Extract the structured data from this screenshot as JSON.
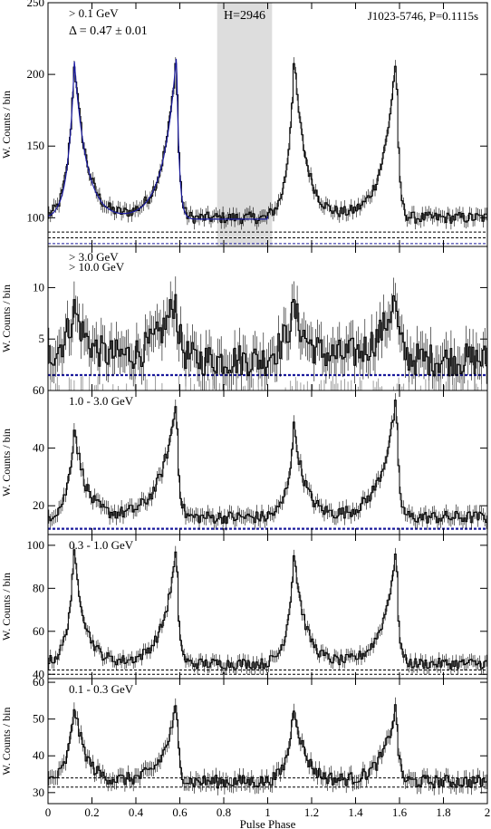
{
  "chart_data": [
    {
      "type": "line",
      "energy_label": "> 0.1 GeV",
      "delta_label": "Δ = 0.47 ± 0.01",
      "htest_label": "H=2946",
      "pulsar_label": "J1023-5746, P=0.1115s",
      "ylabel": "W. Counts / bin",
      "ylim": [
        80,
        250
      ],
      "yticks": [
        100,
        150,
        200,
        250
      ],
      "background_levels": [
        82,
        86,
        90
      ],
      "shaded_phase_range": [
        0.77,
        1.02
      ],
      "fit_curve": true,
      "peaks": [
        {
          "phase": 0.12,
          "height": 210,
          "width_left": 0.03,
          "width_right": 0.055
        },
        {
          "phase": 0.585,
          "height": 215,
          "width_left": 0.06,
          "width_right": 0.012
        }
      ],
      "baseline": 100,
      "noise": 4
    },
    {
      "type": "line",
      "energy_label": "> 3.0 GeV",
      "energy_label_2": "> 10.0 GeV",
      "ylabel": "W. Counts / bin",
      "ylim": [
        0,
        14
      ],
      "yticks": [
        5,
        10
      ],
      "background_levels": [
        1.5
      ],
      "peaks": [
        {
          "phase": 0.12,
          "height": 8,
          "width_left": 0.05,
          "width_right": 0.06
        },
        {
          "phase": 0.58,
          "height": 9,
          "width_left": 0.08,
          "width_right": 0.02
        }
      ],
      "baseline": 3,
      "noise": 1.6
    },
    {
      "type": "line",
      "energy_label": "1.0 - 3.0 GeV",
      "ylabel": "W. Counts / bin",
      "ylim": [
        10,
        60
      ],
      "yticks": [
        20,
        40,
        60
      ],
      "background_levels": [
        12
      ],
      "peaks": [
        {
          "phase": 0.12,
          "height": 48,
          "width_left": 0.03,
          "width_right": 0.05
        },
        {
          "phase": 0.585,
          "height": 57,
          "width_left": 0.07,
          "width_right": 0.012
        }
      ],
      "baseline": 16,
      "noise": 2.2
    },
    {
      "type": "line",
      "energy_label": "0.3 - 1.0 GeV",
      "ylabel": "W. Counts / bin",
      "ylim": [
        38,
        105
      ],
      "yticks": [
        40,
        60,
        80,
        100
      ],
      "background_levels": [
        40,
        42
      ],
      "peaks": [
        {
          "phase": 0.12,
          "height": 97,
          "width_left": 0.03,
          "width_right": 0.05
        },
        {
          "phase": 0.585,
          "height": 99,
          "width_left": 0.06,
          "width_right": 0.012
        }
      ],
      "baseline": 45,
      "noise": 2.5
    },
    {
      "type": "line",
      "energy_label": "0.1 - 0.3 GeV",
      "ylabel": "W. Counts / bin",
      "ylim": [
        27,
        61
      ],
      "yticks": [
        30,
        40,
        50,
        60
      ],
      "background_levels": [
        31.5,
        34
      ],
      "peaks": [
        {
          "phase": 0.12,
          "height": 54,
          "width_left": 0.03,
          "width_right": 0.05
        },
        {
          "phase": 0.585,
          "height": 54,
          "width_left": 0.06,
          "width_right": 0.012
        }
      ],
      "baseline": 33,
      "noise": 1.8
    }
  ],
  "xaxis": {
    "label": "Pulse Phase",
    "range": [
      0,
      2
    ],
    "ticks": [
      "0",
      "0.2",
      "0.4",
      "0.6",
      "0.8",
      "1",
      "1.2",
      "1.4",
      "1.6",
      "1.8",
      "2"
    ]
  },
  "colors": {
    "data": "#000000",
    "fit": "#1a1aa0",
    "bg_top": "#000000",
    "bg_blue": "#1a1a9c",
    "shade": "#dddddd",
    "delta": "#ff0000",
    "pulsar": "#0000ff",
    "gray_label": "#888888"
  }
}
